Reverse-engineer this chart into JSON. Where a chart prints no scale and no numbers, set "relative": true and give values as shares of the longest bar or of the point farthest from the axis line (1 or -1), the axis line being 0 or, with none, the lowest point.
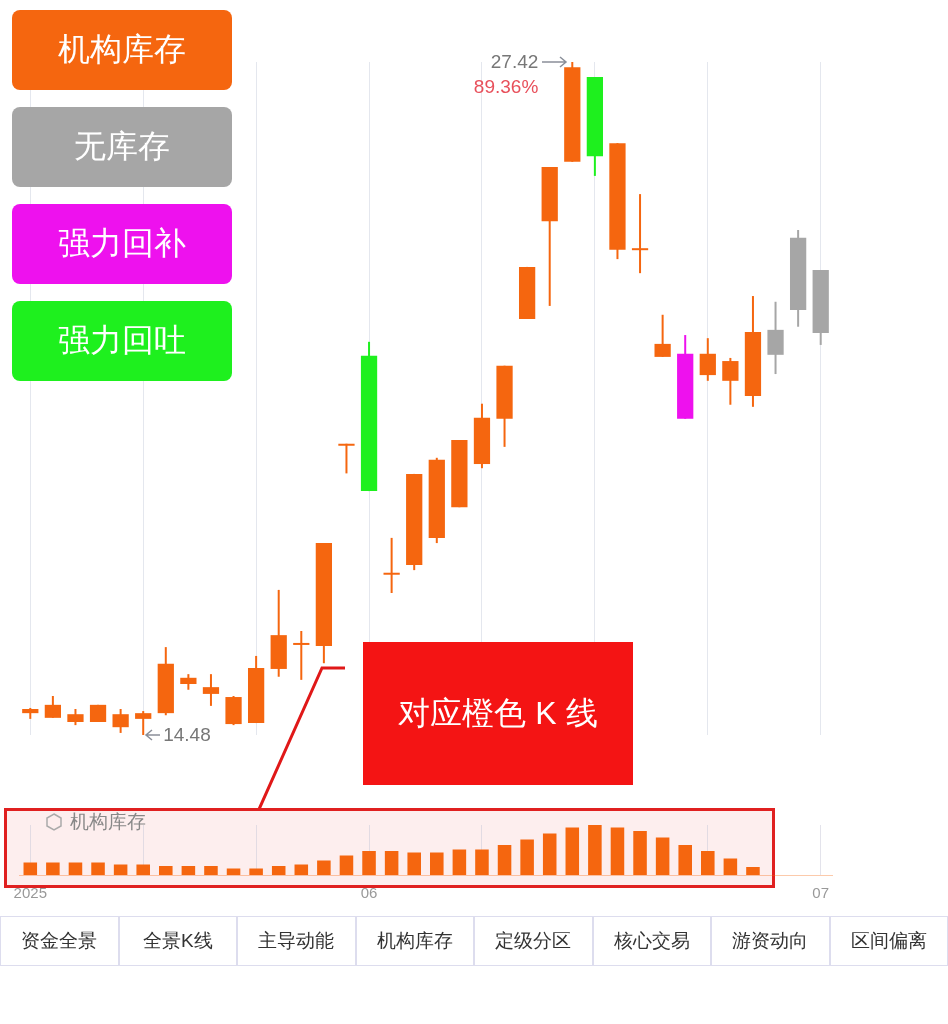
{
  "chart_data": [
    {
      "type": "candlestick",
      "legend": "top left",
      "grid": "x",
      "tick_labels": false,
      "categories": [
        "2025",
        null,
        null,
        null,
        null,
        null,
        null,
        null,
        null,
        null,
        null,
        null,
        null,
        null,
        null,
        "06",
        null,
        null,
        null,
        null,
        null,
        null,
        null,
        null,
        null,
        null,
        null,
        null,
        null,
        null,
        null,
        null,
        null,
        null,
        null,
        "07"
      ],
      "series": [
        {
          "name": "机构库存",
          "color": "#f5660f",
          "ohlc": [
            [
              14.9,
              15.0,
              14.79,
              14.98
            ],
            [
              14.81,
              15.23,
              14.81,
              15.06
            ],
            [
              14.73,
              14.98,
              14.67,
              14.88
            ],
            [
              14.73,
              15.06,
              14.73,
              15.06
            ],
            [
              14.63,
              14.98,
              14.52,
              14.88
            ],
            [
              14.79,
              14.94,
              14.48,
              14.9
            ],
            [
              14.9,
              16.17,
              14.86,
              15.85
            ],
            [
              15.46,
              15.65,
              15.35,
              15.58
            ],
            [
              15.27,
              15.65,
              15.04,
              15.4
            ],
            [
              14.69,
              15.23,
              14.67,
              15.21
            ],
            [
              14.71,
              16.0,
              14.71,
              15.77
            ],
            [
              15.75,
              17.27,
              15.6,
              16.4
            ],
            [
              16.25,
              16.48,
              15.54,
              16.25
            ],
            [
              16.19,
              18.17,
              15.86,
              18.17
            ],
            [
              20.08,
              20.08,
              19.51,
              20.08
            ],
            null,
            [
              17.6,
              18.27,
              17.21,
              17.6
            ],
            [
              17.75,
              19.5,
              17.65,
              19.5
            ],
            [
              18.27,
              19.81,
              18.17,
              19.77
            ],
            [
              18.86,
              20.15,
              18.86,
              20.15
            ],
            [
              19.69,
              20.85,
              19.61,
              20.58
            ],
            [
              20.56,
              21.58,
              20.02,
              21.58
            ],
            [
              22.48,
              23.48,
              22.48,
              23.48
            ],
            [
              24.36,
              25.4,
              22.73,
              25.4
            ],
            [
              25.5,
              27.42,
              25.5,
              27.32
            ],
            null,
            [
              23.81,
              25.86,
              23.63,
              25.86
            ],
            [
              23.84,
              24.88,
              23.36,
              23.84
            ],
            [
              21.75,
              22.56,
              21.75,
              22.0
            ],
            null,
            [
              21.4,
              22.11,
              21.29,
              21.81
            ],
            [
              21.29,
              21.73,
              20.83,
              21.67
            ],
            [
              21.0,
              22.92,
              20.79,
              22.23
            ],
            null,
            null,
            null
          ]
        },
        {
          "name": "无库存",
          "color": "#a6a6a6",
          "ohlc": [
            null,
            null,
            null,
            null,
            null,
            null,
            null,
            null,
            null,
            null,
            null,
            null,
            null,
            null,
            null,
            null,
            null,
            null,
            null,
            null,
            null,
            null,
            null,
            null,
            null,
            null,
            null,
            null,
            null,
            null,
            null,
            null,
            null,
            [
              21.79,
              22.81,
              21.42,
              22.27
            ],
            [
              22.65,
              24.19,
              22.33,
              24.04
            ],
            [
              22.21,
              23.42,
              21.98,
              23.42
            ]
          ]
        },
        {
          "name": "强力回补",
          "color": "#ee11ee",
          "ohlc": [
            null,
            null,
            null,
            null,
            null,
            null,
            null,
            null,
            null,
            null,
            null,
            null,
            null,
            null,
            null,
            null,
            null,
            null,
            null,
            null,
            null,
            null,
            null,
            null,
            null,
            null,
            null,
            null,
            null,
            [
              20.56,
              22.17,
              20.56,
              21.81
            ],
            null,
            null,
            null,
            null,
            null,
            null
          ]
        },
        {
          "name": "强力回吐",
          "color": "#1ef01e",
          "ohlc": [
            null,
            null,
            null,
            null,
            null,
            null,
            null,
            null,
            null,
            null,
            null,
            null,
            null,
            null,
            null,
            [
              21.77,
              22.04,
              19.17,
              19.17
            ],
            null,
            null,
            null,
            null,
            null,
            null,
            null,
            null,
            null,
            [
              27.13,
              27.13,
              25.23,
              25.61
            ],
            null,
            null,
            null,
            null,
            null,
            null,
            null,
            null,
            null,
            null
          ]
        }
      ],
      "annotations": [
        "27.42",
        "89.36%",
        "14.48",
        "对应橙色 K 线"
      ]
    },
    {
      "type": "bar",
      "title": "机构库存",
      "relative": true,
      "grid": "x",
      "color": "#f5660f",
      "categories": [
        "2025",
        null,
        null,
        null,
        null,
        null,
        null,
        null,
        null,
        null,
        null,
        null,
        null,
        null,
        null,
        "06",
        null,
        null,
        null,
        null,
        null,
        null,
        null,
        null,
        null,
        null,
        null,
        null,
        null,
        null,
        null,
        null,
        null,
        null,
        null,
        "07"
      ],
      "values": [
        0.25,
        0.25,
        0.25,
        0.25,
        0.21,
        0.21,
        0.18,
        0.18,
        0.18,
        0.13,
        0.13,
        0.18,
        0.21,
        0.29,
        0.39,
        0.48,
        0.48,
        0.45,
        0.45,
        0.51,
        0.51,
        0.6,
        0.71,
        0.83,
        0.95,
        1,
        0.95,
        0.88,
        0.75,
        0.6,
        0.48,
        0.33,
        0.16,
        null,
        null,
        null
      ]
    },
    {
      "type": "other",
      "annotations": [
        "资金全景",
        "全景K线",
        "主导动能",
        "机构库存",
        "定级分区",
        "核心交易",
        "游资动向",
        "区间偏离"
      ]
    }
  ]
}
